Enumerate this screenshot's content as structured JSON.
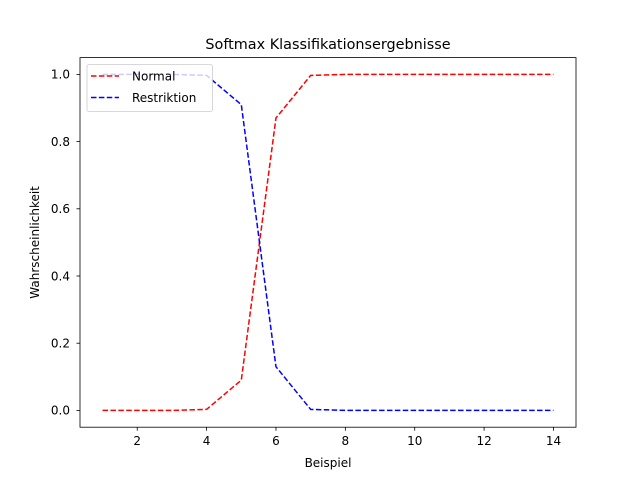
{
  "chart_data": {
    "type": "line",
    "title": "Softmax Klassifikationsergebnisse",
    "xlabel": "Beispiel",
    "ylabel": "Wahrscheinlichkeit",
    "x": [
      1,
      2,
      3,
      4,
      5,
      6,
      7,
      8,
      9,
      10,
      11,
      12,
      13,
      14
    ],
    "series": [
      {
        "name": "Normal",
        "color": "#ff0000",
        "linestyle": "dashed",
        "values": [
          0.0,
          0.0,
          0.0,
          0.003,
          0.09,
          0.87,
          0.997,
          1.0,
          1.0,
          1.0,
          1.0,
          1.0,
          1.0,
          1.0
        ]
      },
      {
        "name": "Restriktion",
        "color": "#0000ff",
        "linestyle": "dashed",
        "values": [
          1.0,
          1.0,
          1.0,
          0.997,
          0.91,
          0.13,
          0.003,
          0.0,
          0.0,
          0.0,
          0.0,
          0.0,
          0.0,
          0.0
        ]
      }
    ],
    "xticks": [
      2,
      4,
      6,
      8,
      10,
      12,
      14
    ],
    "yticks": [
      0.0,
      0.2,
      0.4,
      0.6,
      0.8,
      1.0
    ],
    "xtick_labels": [
      "2",
      "4",
      "6",
      "8",
      "10",
      "12",
      "14"
    ],
    "ytick_labels": [
      "0.0",
      "0.2",
      "0.4",
      "0.6",
      "0.8",
      "1.0"
    ],
    "xlim": [
      0.35,
      14.65
    ],
    "ylim": [
      -0.05,
      1.05
    ],
    "grid": false,
    "legend_position": "upper-left"
  }
}
